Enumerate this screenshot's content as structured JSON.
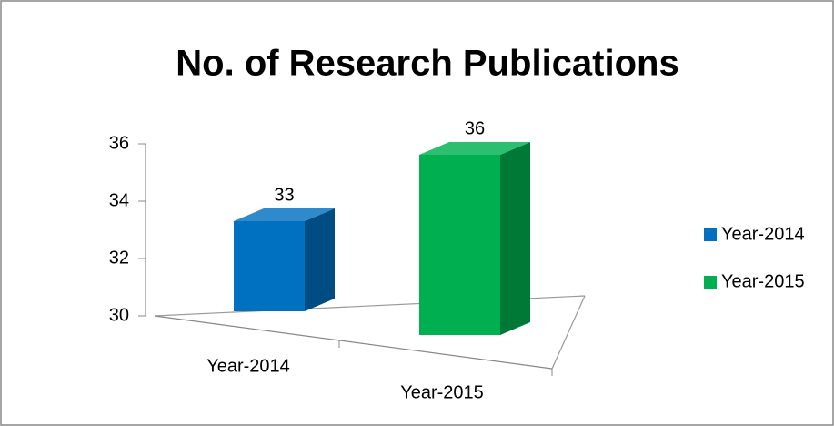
{
  "chart_data": {
    "type": "bar",
    "title": "No. of Research Publications",
    "categories": [
      "Year-2014",
      "Year-2015"
    ],
    "series": [
      {
        "name": "Year-2014",
        "color": "#0070c0",
        "values": [
          33,
          null
        ]
      },
      {
        "name": "Year-2015",
        "color": "#00b050",
        "values": [
          null,
          36
        ]
      }
    ],
    "ylim": [
      30,
      36
    ],
    "yticks": [
      30,
      32,
      34,
      36
    ],
    "grid": false,
    "legend": "right"
  }
}
